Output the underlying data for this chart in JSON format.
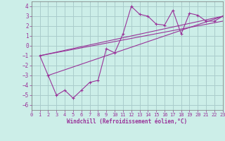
{
  "background_color": "#cceee8",
  "grid_color": "#aacccc",
  "line_color": "#993399",
  "xlabel": "Windchill (Refroidissement éolien,°C)",
  "xlim": [
    0,
    23
  ],
  "ylim": [
    -6.5,
    4.5
  ],
  "yticks": [
    -6,
    -5,
    -4,
    -3,
    -2,
    -1,
    0,
    1,
    2,
    3,
    4
  ],
  "xticks": [
    0,
    1,
    2,
    3,
    4,
    5,
    6,
    7,
    8,
    9,
    10,
    11,
    12,
    13,
    14,
    15,
    16,
    17,
    18,
    19,
    20,
    21,
    22,
    23
  ],
  "series": [
    {
      "x": [
        1,
        2,
        3,
        4,
        5,
        6,
        7,
        8,
        9,
        10,
        11,
        12,
        13,
        14,
        15,
        16,
        17,
        18,
        19,
        20,
        21,
        22,
        23
      ],
      "y": [
        -1,
        -3,
        -5,
        -4.5,
        -5.3,
        -4.5,
        -3.7,
        -3.5,
        -0.3,
        -0.7,
        1.2,
        4.0,
        3.2,
        3.0,
        2.2,
        2.1,
        3.6,
        1.2,
        3.3,
        3.1,
        2.5,
        2.5,
        3.0
      ]
    },
    {
      "x": [
        1,
        23
      ],
      "y": [
        -1,
        3.0
      ]
    },
    {
      "x": [
        1,
        23
      ],
      "y": [
        -1,
        2.5
      ]
    },
    {
      "x": [
        2,
        23
      ],
      "y": [
        -3,
        3.0
      ]
    }
  ]
}
